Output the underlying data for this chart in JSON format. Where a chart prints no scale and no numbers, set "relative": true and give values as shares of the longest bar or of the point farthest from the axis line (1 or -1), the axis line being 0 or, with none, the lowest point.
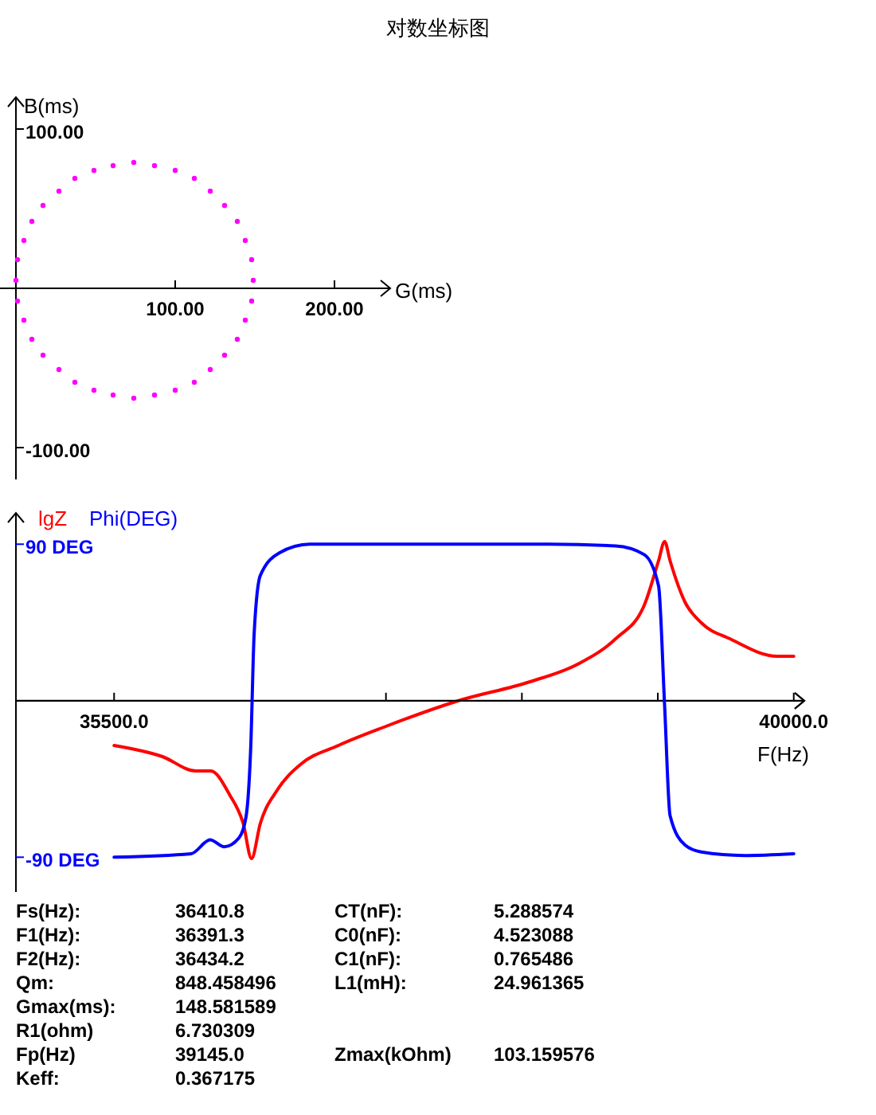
{
  "chart_data": [
    {
      "type": "line",
      "title": "对数坐标图",
      "xlabel": "G(ms)",
      "ylabel": "B(ms)",
      "xlim": [
        -10,
        235
      ],
      "ylim": [
        -120,
        120
      ],
      "xticks": [
        {
          "value": 100,
          "label": "100.00"
        },
        {
          "value": 200,
          "label": "200.00"
        }
      ],
      "yticks": [
        {
          "value": 100,
          "label": "100.00"
        },
        {
          "value": -100,
          "label": "-100.00"
        }
      ],
      "grid": false,
      "legend": false,
      "marker": "circle",
      "series": [
        {
          "type": "scatter",
          "color": "#ff00ff",
          "x": [
            149,
            148,
            144,
            139,
            131,
            122,
            112,
            100,
            87,
            74,
            61,
            49,
            37,
            27,
            17,
            10,
            5,
            1,
            0,
            1,
            5,
            10,
            17,
            27,
            37,
            49,
            61,
            74,
            87,
            100,
            112,
            122,
            131,
            139,
            144,
            148
          ],
          "values": [
            5,
            18,
            30,
            42,
            52,
            61,
            69,
            74,
            77,
            79,
            77,
            74,
            69,
            61,
            52,
            42,
            30,
            18,
            5,
            -8,
            -20,
            -32,
            -42,
            -51,
            -59,
            -64,
            -67,
            -69,
            -67,
            -64,
            -59,
            -51,
            -42,
            -32,
            -20,
            -8
          ]
        }
      ]
    },
    {
      "type": "line",
      "relative": true,
      "xlim": [
        34850,
        40070
      ],
      "legend": "top left",
      "marker": "none",
      "line_style": "solid",
      "series": [
        {
          "name": "lgZ",
          "color": "#ff0000",
          "x": [
            35500,
            35820,
            36040,
            36140,
            36265,
            36355,
            36410,
            36468,
            36580,
            36733,
            36985,
            37300,
            37777,
            38254,
            38569,
            38821,
            39010,
            39105,
            39145,
            39181,
            39280,
            39388,
            39577,
            39892,
            40000
          ],
          "values": [
            -0.28,
            -0.35,
            -0.44,
            -0.44,
            -0.59,
            -0.77,
            -0.99,
            -0.77,
            -0.56,
            -0.4,
            -0.28,
            -0.16,
            0,
            0.12,
            0.23,
            0.39,
            0.6,
            0.88,
            1,
            0.88,
            0.62,
            0.49,
            0.39,
            0.28,
            0.28
          ]
        }
      ]
    },
    {
      "type": "line",
      "xlabel": "F(Hz)",
      "xlim": [
        34850,
        40070
      ],
      "ylim": [
        -110,
        108
      ],
      "xticks": [
        {
          "value": 35500,
          "label": "35500.0"
        },
        {
          "value": 37300,
          "label": null
        },
        {
          "value": 38200,
          "label": null
        },
        {
          "value": 39100,
          "label": null
        },
        {
          "value": 40000,
          "label": "40000.0"
        }
      ],
      "yticks": [
        {
          "value": 90,
          "label": "90 DEG"
        },
        {
          "value": -90,
          "label": "-90 DEG"
        }
      ],
      "grid": false,
      "legend": "top left",
      "marker": "none",
      "line_style": "solid",
      "series": [
        {
          "name": "Phi(DEG)",
          "color": "#0000ff",
          "x": [
            35500,
            36010,
            36136,
            36230,
            36326,
            36373,
            36405,
            36427,
            36468,
            36594,
            36796,
            37305,
            38380,
            38821,
            39010,
            39105,
            39145,
            39181,
            39280,
            39388,
            39673,
            40000
          ],
          "values": [
            -90,
            -88,
            -80,
            -84,
            -79,
            -67,
            -26,
            38,
            72,
            85,
            90,
            90,
            90,
            89,
            84,
            66,
            -3,
            -66,
            -83,
            -87,
            -89,
            -88
          ]
        }
      ]
    },
    {
      "type": "other",
      "annotations": [
        "Fs(Hz):",
        "36410.8",
        "CT(nF):",
        "5.288574",
        "F1(Hz):",
        "36391.3",
        "C0(nF):",
        "4.523088",
        "F2(Hz):",
        "36434.2",
        "C1(nF):",
        "0.765486",
        "Qm:",
        "848.458496",
        "L1(mH):",
        "24.961365",
        "Gmax(ms):",
        "148.581589",
        null,
        null,
        "R1(ohm)",
        "6.730309",
        null,
        null,
        "Fp(Hz)",
        "39145.0",
        "Zmax(kOhm)",
        "103.159576",
        "Keff:",
        "0.367175",
        null,
        null
      ]
    }
  ]
}
